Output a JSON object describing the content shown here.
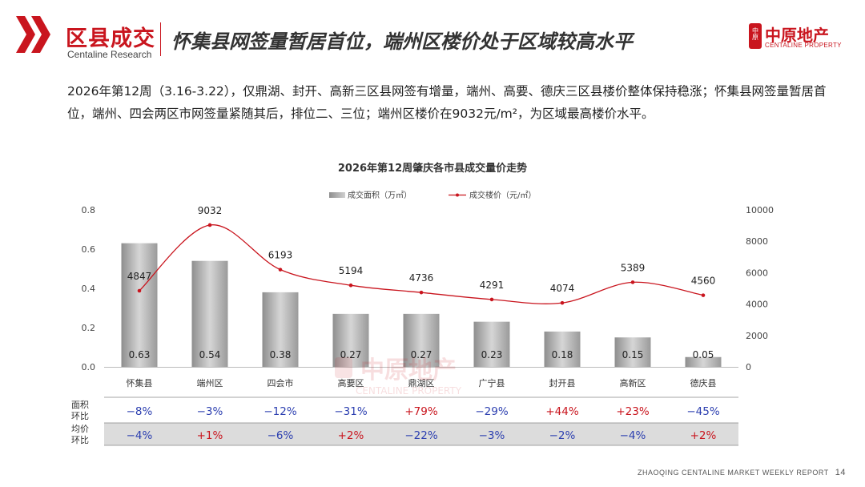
{
  "header": {
    "section_title": "区县成交",
    "section_subtitle": "Centaline Research",
    "headline": "怀集县网签量暂居首位，端州区楼价处于区域较高水平",
    "logo_cn": "中原地产",
    "logo_en": "CENTALINE PROPERTY",
    "logo_seal": "中原"
  },
  "summary": "2026年第12周（3.16-3.22），仅鼎湖、封开、高新三区县网签有增量，端州、高要、德庆三区县楼价整体保持稳涨；怀集县网签量暂居首位，端州、四会两区市网签量紧随其后，排位二、三位；端州区楼价在9032元/m²，为区域最高楼价水平。",
  "watermark": {
    "cn": "中原地产",
    "en": "CENTALINE PROPERTY"
  },
  "footer": {
    "report": "ZHAOQING CENTALINE MARKET WEEKLY REPORT",
    "page": "14"
  },
  "colors": {
    "accent": "#c9151e",
    "line": "#c9151e",
    "up": "#c9151e",
    "down": "#2c3fb0"
  },
  "chart_data": {
    "type": "bar",
    "title": "2026年第12周肇庆各市县成交量价走势",
    "categories": [
      "怀集县",
      "端州区",
      "四会市",
      "高要区",
      "鼎湖区",
      "广宁县",
      "封开县",
      "高新区",
      "德庆县"
    ],
    "series": [
      {
        "name": "成交面积（万㎡）",
        "type": "bar",
        "axis": "left",
        "values": [
          0.63,
          0.54,
          0.38,
          0.27,
          0.27,
          0.23,
          0.18,
          0.15,
          0.05
        ]
      },
      {
        "name": "成交楼价（元/㎡）",
        "type": "line",
        "axis": "right",
        "values": [
          4847,
          9032,
          6193,
          5194,
          4736,
          4291,
          4074,
          5389,
          4560
        ]
      }
    ],
    "y_left": {
      "min": 0,
      "max": 0.8,
      "ticks": [
        "0.0",
        "0.2",
        "0.4",
        "0.6",
        "0.8"
      ]
    },
    "y_right": {
      "min": 0,
      "max": 10000,
      "ticks": [
        "0",
        "2000",
        "4000",
        "6000",
        "8000",
        "10000"
      ]
    },
    "legend_position": "top",
    "table": [
      {
        "label": [
          "面积",
          "环比"
        ],
        "values": [
          "−8%",
          "−3%",
          "−12%",
          "−31%",
          "+79%",
          "−29%",
          "+44%",
          "+23%",
          "−45%"
        ]
      },
      {
        "label": [
          "均价",
          "环比"
        ],
        "values": [
          "−4%",
          "+1%",
          "−6%",
          "+2%",
          "−22%",
          "−3%",
          "−2%",
          "−4%",
          "+2%"
        ]
      }
    ]
  }
}
